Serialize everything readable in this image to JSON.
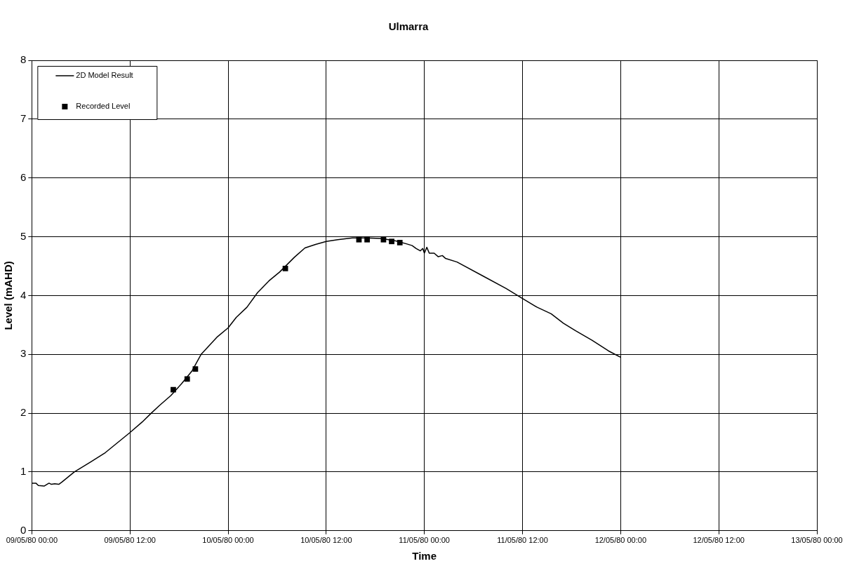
{
  "chart_data": {
    "type": "line",
    "title": "Ulmarra",
    "xlabel": "Time",
    "ylabel": "Level (mAHD)",
    "xlim": [
      "1980-05-09T00:00",
      "1980-05-13T00:00"
    ],
    "xticks": [
      {
        "value": "1980-05-09T00:00",
        "label": "09/05/80 00:00"
      },
      {
        "value": "1980-05-09T12:00",
        "label": "09/05/80 12:00"
      },
      {
        "value": "1980-05-10T00:00",
        "label": "10/05/80 00:00"
      },
      {
        "value": "1980-05-10T12:00",
        "label": "10/05/80 12:00"
      },
      {
        "value": "1980-05-11T00:00",
        "label": "11/05/80 00:00"
      },
      {
        "value": "1980-05-11T12:00",
        "label": "11/05/80 12:00"
      },
      {
        "value": "1980-05-12T00:00",
        "label": "12/05/80 00:00"
      },
      {
        "value": "1980-05-12T12:00",
        "label": "12/05/80 12:00"
      },
      {
        "value": "1980-05-13T00:00",
        "label": "13/05/80 00:00"
      }
    ],
    "ylim": [
      0,
      8
    ],
    "yticks": [
      0,
      1,
      2,
      3,
      4,
      5,
      6,
      7,
      8
    ],
    "grid": true,
    "legend": "top left",
    "series": [
      {
        "name": "2D Model Result",
        "type": "line",
        "color": "#000000",
        "marker": "none",
        "line_style": "solid",
        "x": [
          "1980-05-09T00:00",
          "1980-05-09T00:30",
          "1980-05-09T00:48",
          "1980-05-09T01:30",
          "1980-05-09T02:06",
          "1980-05-09T02:24",
          "1980-05-09T02:48",
          "1980-05-09T03:18",
          "1980-05-09T03:42",
          "1980-05-09T05:12",
          "1980-05-09T07:12",
          "1980-05-09T09:00",
          "1980-05-09T12:00",
          "1980-05-09T13:30",
          "1980-05-09T14:36",
          "1980-05-09T15:36",
          "1980-05-09T17:00",
          "1980-05-09T18:18",
          "1980-05-09T19:36",
          "1980-05-09T20:42",
          "1980-05-09T22:42",
          "1980-05-10T00:00",
          "1980-05-10T01:00",
          "1980-05-10T02:18",
          "1980-05-10T03:36",
          "1980-05-10T05:00",
          "1980-05-10T06:18",
          "1980-05-10T08:06",
          "1980-05-10T09:24",
          "1980-05-10T10:42",
          "1980-05-10T12:00",
          "1980-05-10T13:24",
          "1980-05-10T15:12",
          "1980-05-10T16:54",
          "1980-05-10T18:42",
          "1980-05-10T20:30",
          "1980-05-10T21:48",
          "1980-05-10T22:30",
          "1980-05-10T23:00",
          "1980-05-10T23:30",
          "1980-05-10T23:48",
          "1980-05-11T00:00",
          "1980-05-11T00:18",
          "1980-05-11T00:36",
          "1980-05-11T01:12",
          "1980-05-11T01:42",
          "1980-05-11T02:12",
          "1980-05-11T02:36",
          "1980-05-11T04:00",
          "1980-05-11T07:12",
          "1980-05-11T10:00",
          "1980-05-11T12:00",
          "1980-05-11T13:48",
          "1980-05-11T15:30",
          "1980-05-11T17:00",
          "1980-05-11T18:30",
          "1980-05-11T20:30",
          "1980-05-11T22:30",
          "1980-05-12T00:00"
        ],
        "values": [
          0.81,
          0.81,
          0.77,
          0.76,
          0.81,
          0.79,
          0.8,
          0.79,
          0.83,
          1,
          1.17,
          1.33,
          1.67,
          1.85,
          2,
          2.13,
          2.3,
          2.5,
          2.72,
          3,
          3.3,
          3.45,
          3.63,
          3.8,
          4.05,
          4.25,
          4.4,
          4.65,
          4.81,
          4.87,
          4.92,
          4.95,
          4.98,
          4.98,
          4.97,
          4.93,
          4.88,
          4.85,
          4.8,
          4.76,
          4.8,
          4.72,
          4.82,
          4.72,
          4.72,
          4.66,
          4.68,
          4.63,
          4.57,
          4.33,
          4.12,
          3.95,
          3.8,
          3.69,
          3.53,
          3.4,
          3.24,
          3.06,
          2.95
        ]
      },
      {
        "name": "Recorded Level",
        "type": "scatter",
        "color": "#000000",
        "marker": "square",
        "x": [
          "1980-05-09T17:18",
          "1980-05-09T19:00",
          "1980-05-09T20:00",
          "1980-05-10T07:00",
          "1980-05-10T16:00",
          "1980-05-10T17:00",
          "1980-05-10T19:00",
          "1980-05-10T20:00",
          "1980-05-10T21:00"
        ],
        "values": [
          2.4,
          2.58,
          2.75,
          4.46,
          4.95,
          4.95,
          4.95,
          4.92,
          4.9
        ]
      }
    ]
  }
}
